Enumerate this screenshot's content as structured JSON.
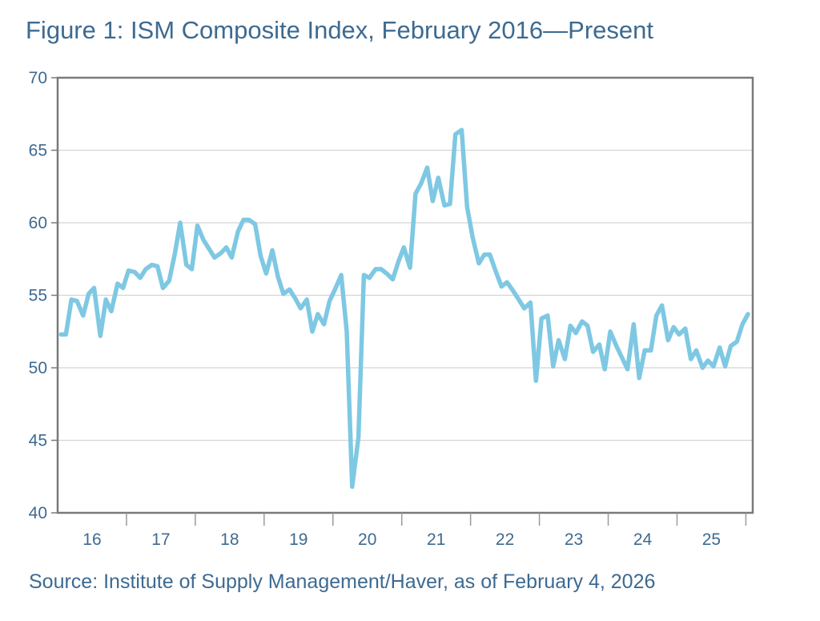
{
  "chart_data": {
    "type": "line",
    "title": "Figure 1: ISM Composite Index, February 2016—Present",
    "source": "Source: Institute of Supply Management/Haver, as of February 4, 2026",
    "xlabel": "",
    "ylabel": "",
    "ylim": [
      40,
      70
    ],
    "yticks": [
      40,
      45,
      50,
      55,
      60,
      65,
      70
    ],
    "xlim": [
      2016.0,
      2026.1
    ],
    "xticks": [
      2017,
      2018,
      2019,
      2020,
      2021,
      2022,
      2023,
      2024,
      2025,
      2026
    ],
    "xtick_labels": [
      {
        "label": "16",
        "x": 2016.5
      },
      {
        "label": "17",
        "x": 2017.5
      },
      {
        "label": "18",
        "x": 2018.5
      },
      {
        "label": "19",
        "x": 2019.5
      },
      {
        "label": "20",
        "x": 2020.5
      },
      {
        "label": "21",
        "x": 2021.5
      },
      {
        "label": "22",
        "x": 2022.5
      },
      {
        "label": "23",
        "x": 2023.5
      },
      {
        "label": "24",
        "x": 2024.5
      },
      {
        "label": "25",
        "x": 2025.5
      }
    ],
    "grid": "horizontal",
    "line_color": "#7ec8e3",
    "series": [
      {
        "x": [
          2016.05,
          2016.12,
          2016.2,
          2016.28,
          2016.37,
          2016.45,
          2016.53,
          2016.62,
          2016.7,
          2016.78,
          2016.87,
          2016.95,
          2017.03,
          2017.12,
          2017.2,
          2017.28,
          2017.37,
          2017.45,
          2017.53,
          2017.62,
          2017.7,
          2017.78,
          2017.87,
          2017.95,
          2018.03,
          2018.12,
          2018.2,
          2018.28,
          2018.37,
          2018.45,
          2018.53,
          2018.62,
          2018.7,
          2018.78,
          2018.87,
          2018.95,
          2019.03,
          2019.12,
          2019.2,
          2019.28,
          2019.37,
          2019.45,
          2019.53,
          2019.62,
          2019.7,
          2019.78,
          2019.87,
          2019.95,
          2020.03,
          2020.12,
          2020.2,
          2020.28,
          2020.37,
          2020.45,
          2020.53,
          2020.62,
          2020.7,
          2020.78,
          2020.87,
          2020.95,
          2021.03,
          2021.12,
          2021.2,
          2021.28,
          2021.37,
          2021.45,
          2021.53,
          2021.62,
          2021.7,
          2021.78,
          2021.87,
          2021.95,
          2022.03,
          2022.12,
          2022.2,
          2022.28,
          2022.37,
          2022.45,
          2022.53,
          2022.62,
          2022.7,
          2022.78,
          2022.87,
          2022.95,
          2023.03,
          2023.12,
          2023.2,
          2023.28,
          2023.37,
          2023.45,
          2023.53,
          2023.62,
          2023.7,
          2023.78,
          2023.87,
          2023.95,
          2024.03,
          2024.12,
          2024.2,
          2024.28,
          2024.37,
          2024.45,
          2024.53,
          2024.62,
          2024.7,
          2024.78,
          2024.87,
          2024.95,
          2025.03,
          2025.12,
          2025.2,
          2025.28,
          2025.37,
          2025.45,
          2025.53,
          2025.62,
          2025.7,
          2025.78,
          2025.87,
          2025.95,
          2026.03
        ],
        "values": [
          52.3,
          52.3,
          54.7,
          54.6,
          53.6,
          55.1,
          55.5,
          52.2,
          54.7,
          53.9,
          55.8,
          55.5,
          56.7,
          56.6,
          56.2,
          56.8,
          57.1,
          57.0,
          55.5,
          56.0,
          57.8,
          60.0,
          57.1,
          56.8,
          59.8,
          58.8,
          58.2,
          57.6,
          57.9,
          58.3,
          57.6,
          59.4,
          60.2,
          60.2,
          59.9,
          57.7,
          56.5,
          58.1,
          56.3,
          55.1,
          55.4,
          54.8,
          54.1,
          54.7,
          52.5,
          53.7,
          53.0,
          54.6,
          55.4,
          56.4,
          52.5,
          41.8,
          45.2,
          56.4,
          56.2,
          56.8,
          56.8,
          56.5,
          56.1,
          57.3,
          58.3,
          56.9,
          62.0,
          62.7,
          63.8,
          61.5,
          63.1,
          61.2,
          61.3,
          66.1,
          66.4,
          61.1,
          59.0,
          57.2,
          57.8,
          57.8,
          56.6,
          55.6,
          55.9,
          55.3,
          54.7,
          54.1,
          54.5,
          49.1,
          53.4,
          53.6,
          50.1,
          51.9,
          50.6,
          52.9,
          52.4,
          53.2,
          52.9,
          51.1,
          51.6,
          49.9,
          52.5,
          51.5,
          50.7,
          49.9,
          53.0,
          49.3,
          51.2,
          51.2,
          53.6,
          54.3,
          51.9,
          52.8,
          52.3,
          52.7,
          50.6,
          51.2,
          50.0,
          50.5,
          50.1,
          51.4,
          50.1,
          51.5,
          51.8,
          53.0,
          53.7
        ]
      }
    ]
  }
}
